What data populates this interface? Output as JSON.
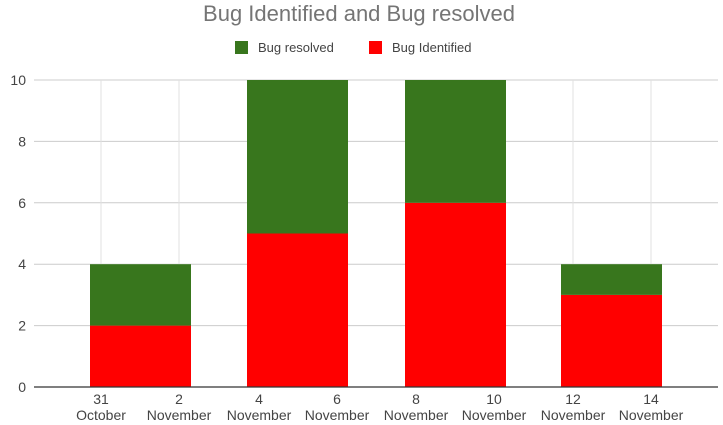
{
  "chart_data": {
    "type": "bar",
    "stacked": true,
    "title": "Bug Identified and Bug resolved",
    "xlabel": "",
    "ylabel": "",
    "ylim": [
      0,
      10
    ],
    "yticks": [
      "0",
      "2",
      "4",
      "6",
      "8",
      "10"
    ],
    "x_ticks": [
      [
        "31",
        "October"
      ],
      [
        "2",
        "November"
      ],
      [
        "4",
        "November"
      ],
      [
        "6",
        "November"
      ],
      [
        "8",
        "November"
      ],
      [
        "10",
        "November"
      ],
      [
        "12",
        "November"
      ],
      [
        "14",
        "November"
      ]
    ],
    "categories": [
      "31 October – 2 November",
      "4–6 November",
      "8–10 November",
      "12–14 November"
    ],
    "series": [
      {
        "name": "Bug Identified",
        "values": [
          2,
          5,
          6,
          3
        ],
        "color": "#ff0000"
      },
      {
        "name": "Bug resolved",
        "values": [
          2,
          5,
          4,
          1
        ],
        "color": "#38761d"
      }
    ],
    "legend": {
      "placement": "top",
      "order": [
        "Bug resolved",
        "Bug Identified"
      ]
    },
    "grid": true
  }
}
